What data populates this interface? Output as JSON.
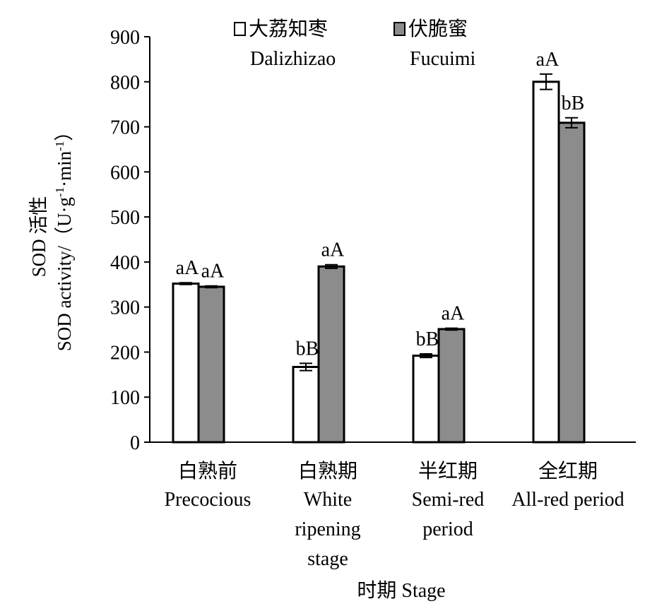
{
  "chart_data": {
    "type": "bar",
    "ylabel_line1": "SOD 活性",
    "ylabel_line2": "SOD activity/（U·g·min）",
    "ylabel_superscripts": [
      "-1",
      "-1"
    ],
    "xlabel": "时期 Stage",
    "ylim": [
      0,
      900
    ],
    "yticks": [
      0,
      100,
      200,
      300,
      400,
      500,
      600,
      700,
      800,
      900
    ],
    "legend_position": "top-center",
    "categories": [
      {
        "zh": "白熟前",
        "en": [
          "Precocious"
        ]
      },
      {
        "zh": "白熟期",
        "en": [
          "White",
          "ripening",
          "stage"
        ]
      },
      {
        "zh": "半红期",
        "en": [
          "Semi-red",
          "period"
        ]
      },
      {
        "zh": "全红期",
        "en": [
          "All-red period"
        ]
      }
    ],
    "series": [
      {
        "name_zh": "大荔知枣",
        "name_en": "Dalizhizao",
        "color": "#ffffff",
        "values": [
          352,
          167,
          192,
          800
        ],
        "errors": [
          2,
          8,
          4,
          17
        ],
        "labels": [
          "aA",
          "bB",
          "bB",
          "aA"
        ]
      },
      {
        "name_zh": "伏脆蜜",
        "name_en": "Fucuimi",
        "color": "#8c8c8c",
        "values": [
          345,
          390,
          251,
          709
        ],
        "errors": [
          2,
          4,
          2,
          11
        ],
        "labels": [
          "aA",
          "aA",
          "aA",
          "bB"
        ]
      }
    ]
  }
}
